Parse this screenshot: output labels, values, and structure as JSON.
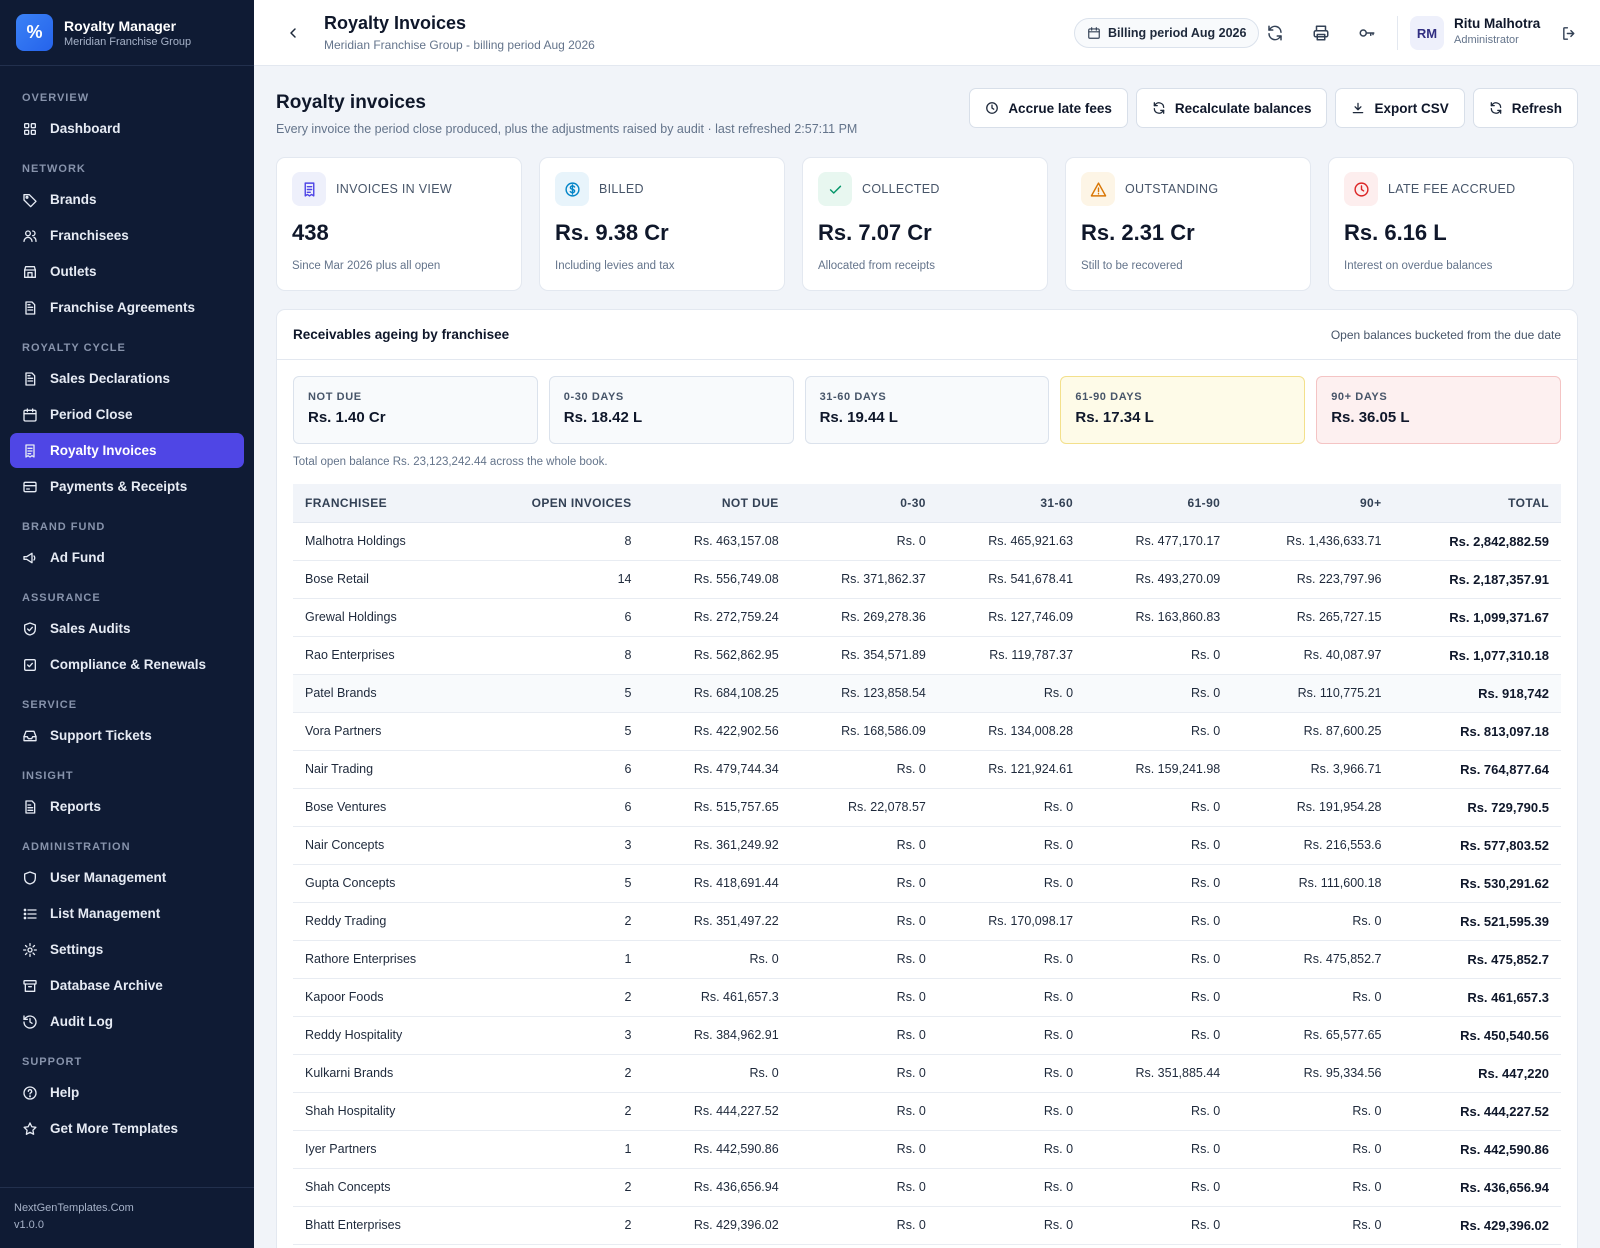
{
  "app": {
    "name": "Royalty Manager",
    "org": "Meridian Franchise Group",
    "logo_glyph": "%"
  },
  "sidebar": {
    "sections": [
      {
        "label": "OVERVIEW",
        "items": [
          {
            "label": "Dashboard",
            "icon": "grid-icon"
          }
        ]
      },
      {
        "label": "NETWORK",
        "items": [
          {
            "label": "Brands",
            "icon": "tag-icon"
          },
          {
            "label": "Franchisees",
            "icon": "users-icon"
          },
          {
            "label": "Outlets",
            "icon": "store-icon"
          },
          {
            "label": "Franchise Agreements",
            "icon": "document-icon"
          }
        ]
      },
      {
        "label": "ROYALTY CYCLE",
        "items": [
          {
            "label": "Sales Declarations",
            "icon": "document-icon"
          },
          {
            "label": "Period Close",
            "icon": "calendar-icon"
          },
          {
            "label": "Royalty Invoices",
            "icon": "receipt-icon",
            "active": true
          },
          {
            "label": "Payments & Receipts",
            "icon": "card-icon"
          }
        ]
      },
      {
        "label": "BRAND FUND",
        "items": [
          {
            "label": "Ad Fund",
            "icon": "megaphone-icon"
          }
        ]
      },
      {
        "label": "ASSURANCE",
        "items": [
          {
            "label": "Sales Audits",
            "icon": "shield-check-icon"
          },
          {
            "label": "Compliance & Renewals",
            "icon": "check-square-icon"
          }
        ]
      },
      {
        "label": "SERVICE",
        "items": [
          {
            "label": "Support Tickets",
            "icon": "inbox-icon"
          }
        ]
      },
      {
        "label": "INSIGHT",
        "items": [
          {
            "label": "Reports",
            "icon": "report-icon"
          }
        ]
      },
      {
        "label": "ADMINISTRATION",
        "items": [
          {
            "label": "User Management",
            "icon": "shield-icon"
          },
          {
            "label": "List Management",
            "icon": "list-icon"
          },
          {
            "label": "Settings",
            "icon": "gear-icon"
          },
          {
            "label": "Database Archive",
            "icon": "archive-icon"
          },
          {
            "label": "Audit Log",
            "icon": "history-icon"
          }
        ]
      },
      {
        "label": "SUPPORT",
        "items": [
          {
            "label": "Help",
            "icon": "help-icon"
          },
          {
            "label": "Get More Templates",
            "icon": "star-icon"
          }
        ]
      }
    ],
    "footer": {
      "site": "NextGenTemplates.Com",
      "version": "v1.0.0"
    }
  },
  "topbar": {
    "title": "Royalty Invoices",
    "subtitle": "Meridian Franchise Group - billing period Aug 2026",
    "period_pill": "Billing period Aug 2026",
    "user": {
      "initials": "RM",
      "name": "Ritu Malhotra",
      "role": "Administrator"
    }
  },
  "page": {
    "title": "Royalty invoices",
    "subtitle": "Every invoice the period close produced, plus the adjustments raised by audit · last refreshed 2:57:11 PM",
    "actions": {
      "accrue": "Accrue late fees",
      "recalc": "Recalculate balances",
      "export": "Export CSV",
      "refresh": "Refresh"
    }
  },
  "kpis": [
    {
      "label": "INVOICES IN VIEW",
      "value": "438",
      "note": "Since Mar 2026 plus all open",
      "icon": "receipt-icon",
      "color": "#4f46e5",
      "bg": "#eef0fb"
    },
    {
      "label": "BILLED",
      "value": "Rs. 9.38 Cr",
      "note": "Including levies and tax",
      "icon": "dollar-icon",
      "color": "#0284c7",
      "bg": "#e8f4fb"
    },
    {
      "label": "COLLECTED",
      "value": "Rs. 7.07 Cr",
      "note": "Allocated from receipts",
      "icon": "check-icon",
      "color": "#059669",
      "bg": "#e8f7f0"
    },
    {
      "label": "OUTSTANDING",
      "value": "Rs. 2.31 Cr",
      "note": "Still to be recovered",
      "icon": "warning-icon",
      "color": "#d97706",
      "bg": "#fdf5e6"
    },
    {
      "label": "LATE FEE ACCRUED",
      "value": "Rs. 6.16 L",
      "note": "Interest on overdue balances",
      "icon": "clock-icon",
      "color": "#dc2626",
      "bg": "#fdeeee"
    }
  ],
  "ageing": {
    "title": "Receivables ageing by franchisee",
    "note": "Open balances bucketed from the due date",
    "buckets": [
      {
        "label": "NOT DUE",
        "value": "Rs. 1.40 Cr",
        "tone": "normal"
      },
      {
        "label": "0-30 DAYS",
        "value": "Rs. 18.42 L",
        "tone": "normal"
      },
      {
        "label": "31-60 DAYS",
        "value": "Rs. 19.44 L",
        "tone": "normal"
      },
      {
        "label": "61-90 DAYS",
        "value": "Rs. 17.34 L",
        "tone": "warn"
      },
      {
        "label": "90+ DAYS",
        "value": "Rs. 36.05 L",
        "tone": "danger"
      }
    ],
    "total_note": "Total open balance Rs. 23,123,242.44 across the whole book.",
    "columns": [
      "FRANCHISEE",
      "OPEN INVOICES",
      "NOT DUE",
      "0-30",
      "31-60",
      "61-90",
      "90+",
      "TOTAL"
    ],
    "rows": [
      [
        "Malhotra Holdings",
        "8",
        "Rs. 463,157.08",
        "Rs. 0",
        "Rs. 465,921.63",
        "Rs. 477,170.17",
        "Rs. 1,436,633.71",
        "Rs. 2,842,882.59"
      ],
      [
        "Bose Retail",
        "14",
        "Rs. 556,749.08",
        "Rs. 371,862.37",
        "Rs. 541,678.41",
        "Rs. 493,270.09",
        "Rs. 223,797.96",
        "Rs. 2,187,357.91"
      ],
      [
        "Grewal Holdings",
        "6",
        "Rs. 272,759.24",
        "Rs. 269,278.36",
        "Rs. 127,746.09",
        "Rs. 163,860.83",
        "Rs. 265,727.15",
        "Rs. 1,099,371.67"
      ],
      [
        "Rao Enterprises",
        "8",
        "Rs. 562,862.95",
        "Rs. 354,571.89",
        "Rs. 119,787.37",
        "Rs. 0",
        "Rs. 40,087.97",
        "Rs. 1,077,310.18"
      ],
      [
        "Patel Brands",
        "5",
        "Rs. 684,108.25",
        "Rs. 123,858.54",
        "Rs. 0",
        "Rs. 0",
        "Rs. 110,775.21",
        "Rs. 918,742"
      ],
      [
        "Vora Partners",
        "5",
        "Rs. 422,902.56",
        "Rs. 168,586.09",
        "Rs. 134,008.28",
        "Rs. 0",
        "Rs. 87,600.25",
        "Rs. 813,097.18"
      ],
      [
        "Nair Trading",
        "6",
        "Rs. 479,744.34",
        "Rs. 0",
        "Rs. 121,924.61",
        "Rs. 159,241.98",
        "Rs. 3,966.71",
        "Rs. 764,877.64"
      ],
      [
        "Bose Ventures",
        "6",
        "Rs. 515,757.65",
        "Rs. 22,078.57",
        "Rs. 0",
        "Rs. 0",
        "Rs. 191,954.28",
        "Rs. 729,790.5"
      ],
      [
        "Nair Concepts",
        "3",
        "Rs. 361,249.92",
        "Rs. 0",
        "Rs. 0",
        "Rs. 0",
        "Rs. 216,553.6",
        "Rs. 577,803.52"
      ],
      [
        "Gupta Concepts",
        "5",
        "Rs. 418,691.44",
        "Rs. 0",
        "Rs. 0",
        "Rs. 0",
        "Rs. 111,600.18",
        "Rs. 530,291.62"
      ],
      [
        "Reddy Trading",
        "2",
        "Rs. 351,497.22",
        "Rs. 0",
        "Rs. 170,098.17",
        "Rs. 0",
        "Rs. 0",
        "Rs. 521,595.39"
      ],
      [
        "Rathore Enterprises",
        "1",
        "Rs. 0",
        "Rs. 0",
        "Rs. 0",
        "Rs. 0",
        "Rs. 475,852.7",
        "Rs. 475,852.7"
      ],
      [
        "Kapoor Foods",
        "2",
        "Rs. 461,657.3",
        "Rs. 0",
        "Rs. 0",
        "Rs. 0",
        "Rs. 0",
        "Rs. 461,657.3"
      ],
      [
        "Reddy Hospitality",
        "3",
        "Rs. 384,962.91",
        "Rs. 0",
        "Rs. 0",
        "Rs. 0",
        "Rs. 65,577.65",
        "Rs. 450,540.56"
      ],
      [
        "Kulkarni Brands",
        "2",
        "Rs. 0",
        "Rs. 0",
        "Rs. 0",
        "Rs. 351,885.44",
        "Rs. 95,334.56",
        "Rs. 447,220"
      ],
      [
        "Shah Hospitality",
        "2",
        "Rs. 444,227.52",
        "Rs. 0",
        "Rs. 0",
        "Rs. 0",
        "Rs. 0",
        "Rs. 444,227.52"
      ],
      [
        "Iyer Partners",
        "1",
        "Rs. 442,590.86",
        "Rs. 0",
        "Rs. 0",
        "Rs. 0",
        "Rs. 0",
        "Rs. 442,590.86"
      ],
      [
        "Shah Concepts",
        "2",
        "Rs. 436,656.94",
        "Rs. 0",
        "Rs. 0",
        "Rs. 0",
        "Rs. 0",
        "Rs. 436,656.94"
      ],
      [
        "Bhatt Enterprises",
        "2",
        "Rs. 429,396.02",
        "Rs. 0",
        "Rs. 0",
        "Rs. 0",
        "Rs. 0",
        "Rs. 429,396.02"
      ]
    ]
  }
}
